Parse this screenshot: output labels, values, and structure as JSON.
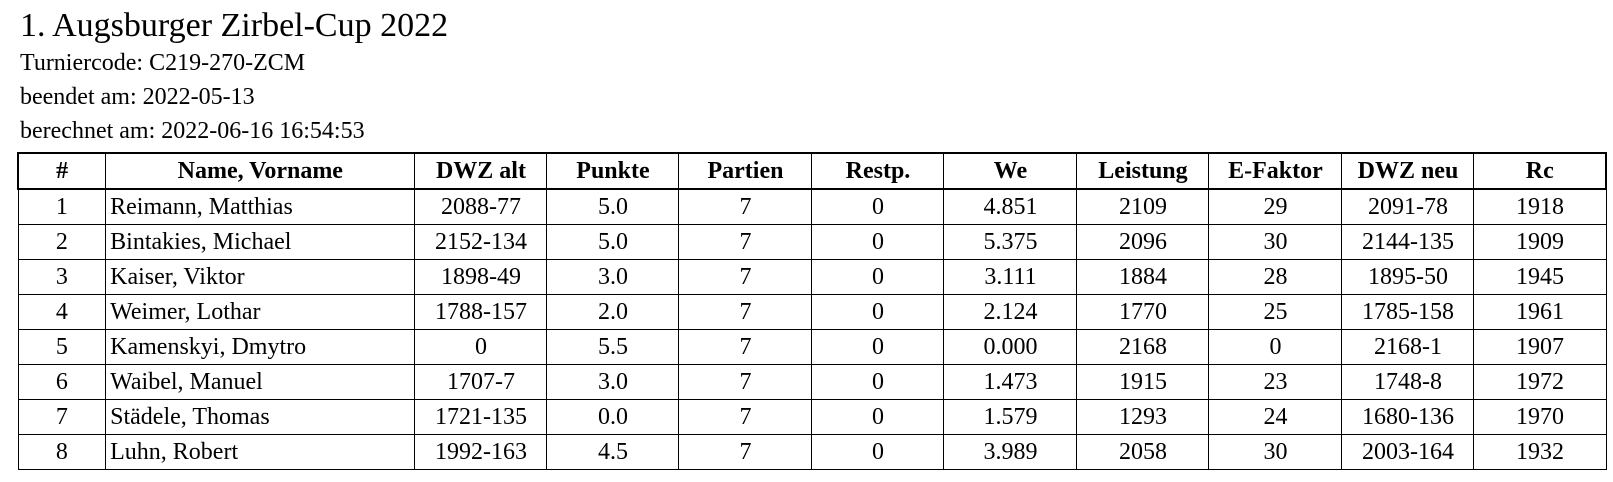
{
  "document": {
    "title": "1. Augsburger Zirbel-Cup 2022",
    "meta": [
      "Turniercode: C219-270-ZCM",
      "beendet am: 2022-05-13",
      "berechnet am: 2022-06-16 16:54:53"
    ]
  },
  "table": {
    "headers": [
      "#",
      "Name, Vorname",
      "DWZ alt",
      "Punkte",
      "Partien",
      "Restp.",
      "We",
      "Leistung",
      "E-Faktor",
      "DWZ neu",
      "Rc"
    ],
    "rows": [
      [
        "1",
        "Reimann, Matthias",
        "2088-77",
        "5.0",
        "7",
        "0",
        "4.851",
        "2109",
        "29",
        "2091-78",
        "1918"
      ],
      [
        "2",
        "Bintakies, Michael",
        "2152-134",
        "5.0",
        "7",
        "0",
        "5.375",
        "2096",
        "30",
        "2144-135",
        "1909"
      ],
      [
        "3",
        "Kaiser, Viktor",
        "1898-49",
        "3.0",
        "7",
        "0",
        "3.111",
        "1884",
        "28",
        "1895-50",
        "1945"
      ],
      [
        "4",
        "Weimer, Lothar",
        "1788-157",
        "2.0",
        "7",
        "0",
        "2.124",
        "1770",
        "25",
        "1785-158",
        "1961"
      ],
      [
        "5",
        "Kamenskyi, Dmytro",
        "0",
        "5.5",
        "7",
        "0",
        "0.000",
        "2168",
        "0",
        "2168-1",
        "1907"
      ],
      [
        "6",
        "Waibel, Manuel",
        "1707-7",
        "3.0",
        "7",
        "0",
        "1.473",
        "1915",
        "23",
        "1748-8",
        "1972"
      ],
      [
        "7",
        "Städele, Thomas",
        "1721-135",
        "0.0",
        "7",
        "0",
        "1.579",
        "1293",
        "24",
        "1680-136",
        "1970"
      ],
      [
        "8",
        "Luhn, Robert",
        "1992-163",
        "4.5",
        "7",
        "0",
        "3.989",
        "2058",
        "30",
        "2003-164",
        "1932"
      ]
    ]
  }
}
